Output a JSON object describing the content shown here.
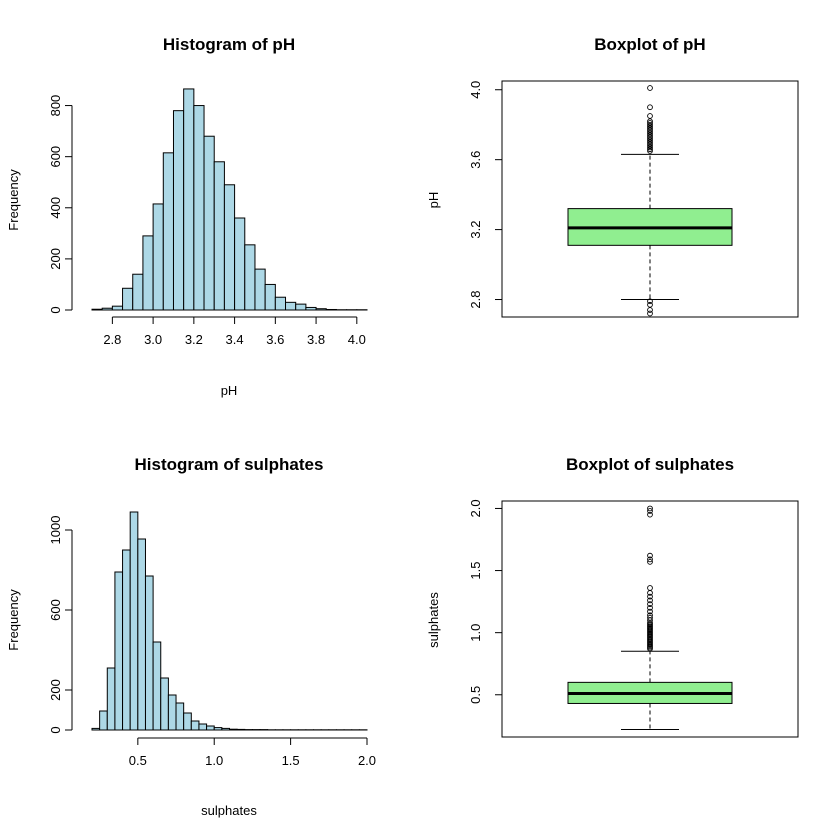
{
  "chart_data": [
    {
      "type": "bar",
      "subtype": "histogram",
      "title": "Histogram of pH",
      "xlabel": "pH",
      "ylabel": "Frequency",
      "fill_color": "#add8e6",
      "bin_width": 0.05,
      "bin_starts": [
        2.7,
        2.75,
        2.8,
        2.85,
        2.9,
        2.95,
        3.0,
        3.05,
        3.1,
        3.15,
        3.2,
        3.25,
        3.3,
        3.35,
        3.4,
        3.45,
        3.5,
        3.55,
        3.6,
        3.65,
        3.7,
        3.75,
        3.8,
        3.85,
        3.9,
        3.95,
        4.0
      ],
      "values": [
        3,
        7,
        15,
        85,
        140,
        290,
        415,
        615,
        780,
        865,
        800,
        680,
        580,
        490,
        360,
        255,
        160,
        100,
        50,
        30,
        23,
        10,
        5,
        2,
        1,
        1,
        1
      ],
      "xlim": [
        2.7,
        4.05
      ],
      "ylim": [
        0,
        900
      ],
      "x_ticks": [
        "2.8",
        "3.0",
        "3.2",
        "3.4",
        "3.6",
        "3.8",
        "4.0"
      ],
      "y_ticks": [
        "0",
        "200",
        "400",
        "600",
        "800"
      ]
    },
    {
      "type": "boxplot",
      "title": "Boxplot of pH",
      "ylabel": "pH",
      "fill_color": "#90ee90",
      "ylim": [
        2.7,
        4.05
      ],
      "stats": {
        "lower_whisker": 2.8,
        "q1": 3.11,
        "median": 3.21,
        "q3": 3.32,
        "upper_whisker": 3.63
      },
      "outliers": [
        2.72,
        2.74,
        2.77,
        2.79,
        3.65,
        3.66,
        3.67,
        3.68,
        3.69,
        3.7,
        3.71,
        3.72,
        3.73,
        3.74,
        3.75,
        3.76,
        3.77,
        3.78,
        3.79,
        3.8,
        3.81,
        3.82,
        3.85,
        3.9,
        4.01
      ],
      "y_ticks": [
        "2.8",
        "3.2",
        "3.6",
        "4.0"
      ]
    },
    {
      "type": "bar",
      "subtype": "histogram",
      "title": "Histogram of sulphates",
      "xlabel": "sulphates",
      "ylabel": "Frequency",
      "fill_color": "#add8e6",
      "bin_width": 0.05,
      "bin_starts": [
        0.2,
        0.25,
        0.3,
        0.35,
        0.4,
        0.45,
        0.5,
        0.55,
        0.6,
        0.65,
        0.7,
        0.75,
        0.8,
        0.85,
        0.9,
        0.95,
        1.0,
        1.05,
        1.1,
        1.15,
        1.2,
        1.25,
        1.3,
        1.35,
        1.4,
        1.45,
        1.5,
        1.55,
        1.6,
        1.65,
        1.7,
        1.75,
        1.8,
        1.85,
        1.9,
        1.95
      ],
      "values": [
        8,
        95,
        310,
        790,
        900,
        1090,
        955,
        770,
        440,
        260,
        175,
        135,
        85,
        45,
        30,
        20,
        12,
        8,
        4,
        3,
        2,
        2,
        2,
        1,
        1,
        1,
        1,
        1,
        1,
        1,
        1,
        1,
        1,
        1,
        1,
        1
      ],
      "xlim": [
        0.2,
        2.0
      ],
      "ylim": [
        0,
        1150
      ],
      "x_ticks": [
        "0.5",
        "1.0",
        "1.5",
        "2.0"
      ],
      "y_ticks": [
        "0",
        "200",
        "600",
        "1000"
      ]
    },
    {
      "type": "boxplot",
      "title": "Boxplot of sulphates",
      "ylabel": "sulphates",
      "fill_color": "#90ee90",
      "ylim": [
        0.16,
        2.06
      ],
      "stats": {
        "lower_whisker": 0.22,
        "q1": 0.43,
        "median": 0.51,
        "q3": 0.6,
        "upper_whisker": 0.85
      },
      "outliers": [
        0.87,
        0.88,
        0.89,
        0.9,
        0.91,
        0.92,
        0.93,
        0.94,
        0.95,
        0.96,
        0.97,
        0.98,
        0.99,
        1.0,
        1.01,
        1.02,
        1.03,
        1.04,
        1.05,
        1.06,
        1.07,
        1.08,
        1.1,
        1.12,
        1.14,
        1.17,
        1.2,
        1.23,
        1.26,
        1.29,
        1.32,
        1.36,
        1.57,
        1.59,
        1.62,
        1.95,
        1.98,
        2.0
      ],
      "y_ticks": [
        "0.5",
        "1.0",
        "1.5",
        "2.0"
      ]
    }
  ]
}
